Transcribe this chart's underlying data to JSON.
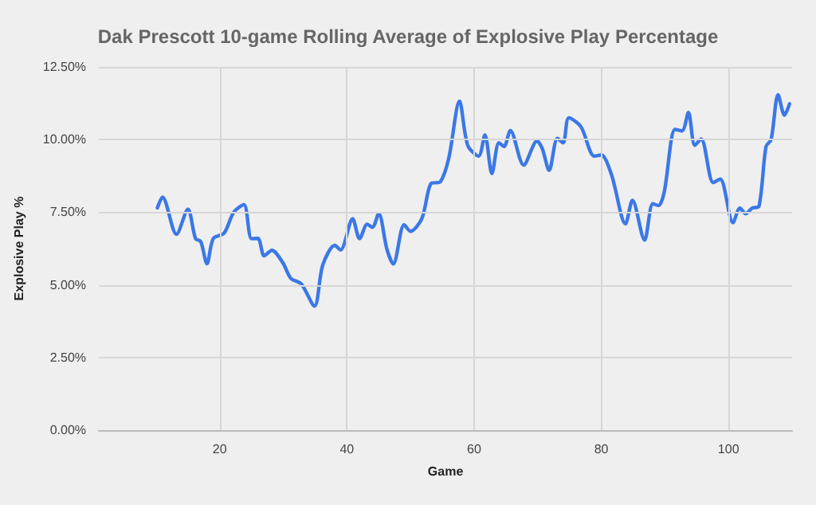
{
  "chart_data": {
    "type": "line",
    "title": "Dak Prescott 10-game Rolling Average of Explosive Play Percentage",
    "xlabel": "Game",
    "ylabel": "Explosive Play %",
    "x": [
      10.2,
      11,
      13.2,
      15,
      16.2,
      17,
      18,
      19,
      20.7,
      22.2,
      23.8,
      25,
      26,
      27,
      28.2,
      29.9,
      31.2,
      32.8,
      34.9,
      36.2,
      38.1,
      39,
      40.9,
      42,
      43.2,
      44,
      45,
      46.3,
      47.3,
      49,
      50,
      51.8,
      53.2,
      54.7,
      56,
      57.7,
      59,
      60.7,
      61.7,
      62.8,
      63.9,
      64.7,
      65.7,
      67.8,
      69.9,
      70.7,
      71.8,
      73.1,
      74,
      74.9,
      76.8,
      78.9,
      80,
      81.6,
      83.8,
      84.9,
      86.8,
      88.1,
      89,
      89.9,
      91.6,
      92.7,
      93.7,
      94.7,
      95.7,
      97.6,
      98.7,
      100.7,
      101.8,
      102.7,
      103.7,
      104.8,
      105.9,
      106.7,
      107.8,
      108.8,
      109.6
    ],
    "series": [
      {
        "color": "#3b78e7",
        "values": [
          7.65,
          8.02,
          6.74,
          7.6,
          6.59,
          6.5,
          5.73,
          6.6,
          6.78,
          7.5,
          7.76,
          6.59,
          6.6,
          6.0,
          6.19,
          5.77,
          5.22,
          5.04,
          4.27,
          5.68,
          6.36,
          6.2,
          7.27,
          6.59,
          7.09,
          6.98,
          7.45,
          6.22,
          5.72,
          7.07,
          6.84,
          7.29,
          8.48,
          8.55,
          9.34,
          11.32,
          9.8,
          9.43,
          10.16,
          8.83,
          9.89,
          9.76,
          10.31,
          9.12,
          9.95,
          9.7,
          8.94,
          10.04,
          9.89,
          10.75,
          10.44,
          9.43,
          9.47,
          8.79,
          7.1,
          7.91,
          6.54,
          7.79,
          7.73,
          8.2,
          10.35,
          10.3,
          10.93,
          9.8,
          10.02,
          8.52,
          8.64,
          7.14,
          7.64,
          7.45,
          7.64,
          7.71,
          9.76,
          10.0,
          11.54,
          10.84,
          11.23
        ]
      }
    ],
    "xlim": [
      1,
      110
    ],
    "xticks": [
      20,
      40,
      60,
      80,
      100
    ],
    "ylim": [
      0,
      12.5
    ],
    "yticks": [
      {
        "value": 0,
        "label": "0.00%"
      },
      {
        "value": 2.5,
        "label": "2.50%"
      },
      {
        "value": 5,
        "label": "5.00%"
      },
      {
        "value": 7.5,
        "label": "7.50%"
      },
      {
        "value": 10,
        "label": "10.00%"
      },
      {
        "value": 12.5,
        "label": "12.50%"
      }
    ],
    "grid": true,
    "marker": "none",
    "line_style": "solid"
  }
}
